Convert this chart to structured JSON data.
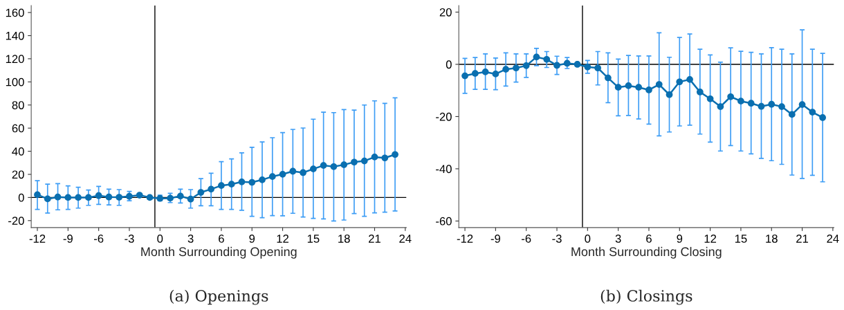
{
  "chart_data": [
    {
      "type": "line",
      "title": "(a) Openings",
      "xlabel": "Month Surrounding Opening",
      "marker": "circle",
      "line_style": "solid",
      "grid": false,
      "legend": false,
      "x": [
        -12,
        -11,
        -10,
        -9,
        -8,
        -7,
        -6,
        -5,
        -4,
        -3,
        -2,
        -1,
        0,
        1,
        2,
        3,
        4,
        5,
        6,
        7,
        8,
        9,
        10,
        11,
        12,
        13,
        14,
        15,
        16,
        17,
        18,
        19,
        20,
        21,
        22,
        23
      ],
      "series": [
        {
          "color": "#0a6fb0",
          "values": [
            2.4,
            -1.2,
            0.4,
            0,
            0,
            0,
            1.6,
            0.4,
            0.2,
            1,
            2,
            0,
            -0.8,
            -0.6,
            1.2,
            -1.4,
            4.4,
            7.2,
            10.3,
            11.5,
            13.5,
            13.1,
            15.3,
            18.1,
            20.1,
            22.7,
            21.5,
            24.7,
            27.7,
            26.7,
            28.3,
            30.6,
            31.6,
            35,
            34.2,
            37.2
          ],
          "errors": [
            [
              -10.3,
              14.5
            ],
            [
              -13.5,
              11.5
            ],
            [
              -10.7,
              12
            ],
            [
              -10.3,
              10
            ],
            [
              -9.2,
              8.8
            ],
            [
              -6.8,
              6.4
            ],
            [
              -6,
              9.6
            ],
            [
              -6.4,
              7.2
            ],
            [
              -6.8,
              6.8
            ],
            [
              -2.8,
              5.2
            ],
            null,
            null,
            [
              -2.8,
              2
            ],
            [
              -4.4,
              3.6
            ],
            [
              -4.8,
              7.2
            ],
            [
              -9.2,
              6.8
            ],
            [
              -7.2,
              16.3
            ],
            [
              -7.2,
              21
            ],
            [
              -10.3,
              31
            ],
            [
              -10.3,
              33.4
            ],
            [
              -11.1,
              38.6
            ],
            [
              -16.3,
              43.4
            ],
            [
              -17.5,
              48
            ],
            [
              -15.7,
              51.7
            ],
            [
              -15.9,
              56.1
            ],
            [
              -13.7,
              58.9
            ],
            [
              -16.9,
              60.1
            ],
            [
              -18.1,
              67.7
            ],
            [
              -18.5,
              73.8
            ],
            [
              -20.3,
              73.4
            ],
            [
              -19.5,
              76
            ],
            [
              -13.9,
              75.6
            ],
            [
              -16.3,
              80
            ],
            [
              -13.3,
              83.6
            ],
            [
              -12.7,
              81.4
            ],
            [
              -11.7,
              86.2
            ]
          ]
        }
      ],
      "xlim": [
        -12.6,
        24.1
      ],
      "xticks": [
        -12,
        -9,
        -6,
        -3,
        0,
        3,
        6,
        9,
        12,
        15,
        18,
        21,
        24
      ],
      "ylim": [
        -26,
        166
      ],
      "yticks": [
        -20,
        0,
        20,
        40,
        60,
        80,
        100,
        120,
        140,
        160
      ],
      "ref_lines": [
        {
          "axis": "x",
          "value": -0.5,
          "color": "#000000"
        },
        {
          "axis": "y",
          "value": 0,
          "color": "#000000"
        }
      ]
    },
    {
      "type": "line",
      "title": "(b) Closings",
      "xlabel": "Month Surrounding Closing",
      "marker": "circle",
      "line_style": "solid",
      "grid": false,
      "legend": false,
      "x": [
        -12,
        -11,
        -10,
        -9,
        -8,
        -7,
        -6,
        -5,
        -4,
        -3,
        -2,
        -1,
        0,
        1,
        2,
        3,
        4,
        5,
        6,
        7,
        8,
        9,
        10,
        11,
        12,
        13,
        14,
        15,
        16,
        17,
        18,
        19,
        20,
        21,
        22,
        23
      ],
      "series": [
        {
          "color": "#0a6fb0",
          "values": [
            -4.4,
            -3.5,
            -2.9,
            -3.7,
            -1.9,
            -1.4,
            -0.5,
            2.8,
            1.9,
            -0.4,
            0.4,
            0,
            -1,
            -1.4,
            -5.2,
            -8.8,
            -8.2,
            -8.8,
            -9.8,
            -7.7,
            -11.6,
            -6.7,
            -5.8,
            -10.6,
            -13.2,
            -16.2,
            -12.4,
            -14.1,
            -14.9,
            -16.1,
            -15.3,
            -16.2,
            -19.2,
            -15.4,
            -18.3,
            -20.4
          ],
          "errors": [
            [
              -11.1,
              2.3
            ],
            [
              -9.6,
              2.6
            ],
            [
              -9.6,
              4
            ],
            [
              -9.7,
              2.4
            ],
            [
              -8.3,
              4.4
            ],
            [
              -6.8,
              4
            ],
            [
              -5,
              4
            ],
            [
              -0.5,
              6.1
            ],
            [
              -1.2,
              4.9
            ],
            [
              -3.9,
              3.1
            ],
            [
              -1.6,
              2.6
            ],
            null,
            [
              -3.4,
              1.5
            ],
            [
              -7.9,
              4.9
            ],
            [
              -14.7,
              4.4
            ],
            [
              -19.7,
              2
            ],
            [
              -19.6,
              3.4
            ],
            [
              -20.9,
              3.2
            ],
            [
              -22.9,
              3.2
            ],
            [
              -27.4,
              12.1
            ],
            [
              -25.9,
              2.7
            ],
            [
              -23.6,
              10.3
            ],
            [
              -23.3,
              11.6
            ],
            [
              -26.7,
              5.8
            ],
            [
              -29.8,
              3.6
            ],
            [
              -33.2,
              0.8
            ],
            [
              -31.1,
              6.3
            ],
            [
              -33.2,
              5
            ],
            [
              -34.3,
              4.6
            ],
            [
              -36,
              4
            ],
            [
              -36.9,
              6.4
            ],
            [
              -38.3,
              5.8
            ],
            [
              -42.4,
              4
            ],
            [
              -43.7,
              13.2
            ],
            [
              -42.5,
              5.8
            ],
            [
              -45,
              4.2
            ]
          ]
        }
      ],
      "xlim": [
        -12.6,
        24.1
      ],
      "xticks": [
        -12,
        -9,
        -6,
        -3,
        0,
        3,
        6,
        9,
        12,
        15,
        18,
        21,
        24
      ],
      "ylim": [
        -62.5,
        22.5
      ],
      "yticks": [
        -60,
        -40,
        -20,
        0,
        20
      ],
      "ref_lines": [
        {
          "axis": "x",
          "value": -0.5,
          "color": "#000000"
        },
        {
          "axis": "y",
          "value": 0,
          "color": "#000000"
        }
      ]
    }
  ]
}
